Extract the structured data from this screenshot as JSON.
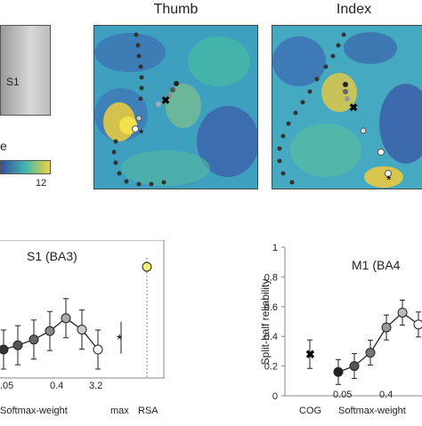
{
  "panel_top": {
    "region_label": "S1",
    "colorbar_label": "e",
    "colorbar_max": "12",
    "map_titles": [
      "Thumb",
      "Index"
    ],
    "colors": {
      "low": "#3a4fa0",
      "mid": "#3fb6b0",
      "high": "#f2d33a"
    }
  },
  "chart_data": [
    {
      "type": "line",
      "title": "S1 (BA3)",
      "x_tick_labels": [
        ".05",
        "0.4",
        "3.2",
        "max",
        "RSA"
      ],
      "series": [
        {
          "values_visible": [
            0.2,
            0.23,
            0.27,
            0.33,
            0.42,
            0.34,
            0.2
          ],
          "colors": [
            "#333333",
            "#555555",
            "#666666",
            "#888888",
            "#aaaaaa",
            "#cccccc",
            "#ffffff"
          ]
        }
      ],
      "extra_points": [
        {
          "label": "max",
          "value": 0.22,
          "marker": "*"
        },
        {
          "label": "RSA",
          "value": 0.75,
          "marker": "circle",
          "color": "#f0f070"
        }
      ]
    },
    {
      "type": "line",
      "title": "M1 (BA4",
      "ylabel": "Split-half reliability",
      "ylim": [
        0,
        1
      ],
      "y_ticks": [
        "0",
        "0.2",
        "0.4",
        "0.6",
        "0.8",
        "1"
      ],
      "x_tick_labels": [
        "COG",
        "0.05",
        "0.4",
        "Softmax-weight"
      ],
      "series": [
        {
          "x": [
            0.05,
            0.1,
            0.2,
            0.4,
            0.8,
            1.6
          ],
          "values": [
            0.16,
            0.2,
            0.29,
            0.46,
            0.56,
            0.48
          ],
          "colors": [
            "#222222",
            "#555555",
            "#777777",
            "#999999",
            "#bbbbbb",
            "#ffffff"
          ]
        }
      ],
      "extra_points": [
        {
          "label": "COG",
          "value": 0.28,
          "marker": "x"
        }
      ]
    }
  ],
  "axis_text": {
    "softmax_left": "Softmax-weight",
    "softmax_right": "Softmax-weight"
  }
}
